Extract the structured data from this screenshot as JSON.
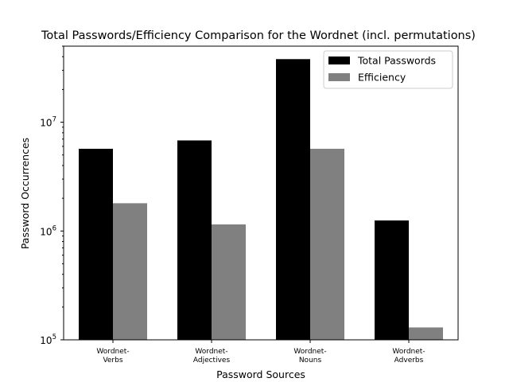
{
  "chart_data": {
    "type": "bar",
    "title": "Total Passwords/Efficiency Comparison for the Wordnet (incl. permutations)",
    "xlabel": "Password Sources",
    "ylabel": "Password Occurrences",
    "yscale": "log",
    "ylim": [
      100000,
      50000000
    ],
    "yticks": [
      {
        "value": 100000,
        "base": "10",
        "exp": "5"
      },
      {
        "value": 1000000,
        "base": "10",
        "exp": "6"
      },
      {
        "value": 10000000,
        "base": "10",
        "exp": "7"
      }
    ],
    "categories": [
      [
        "Wordnet-",
        "Verbs"
      ],
      [
        "Wordnet-",
        "Adjectives"
      ],
      [
        "Wordnet-",
        "Nouns"
      ],
      [
        "Wordnet-",
        "Adverbs"
      ]
    ],
    "series": [
      {
        "name": "Total Passwords",
        "color": "#000000",
        "values": [
          5700000,
          6800000,
          38000000,
          1250000
        ]
      },
      {
        "name": "Efficiency",
        "color": "#808080",
        "values": [
          1800000,
          1150000,
          5700000,
          130000
        ]
      }
    ],
    "legend_position": "top-right",
    "grid": false
  }
}
